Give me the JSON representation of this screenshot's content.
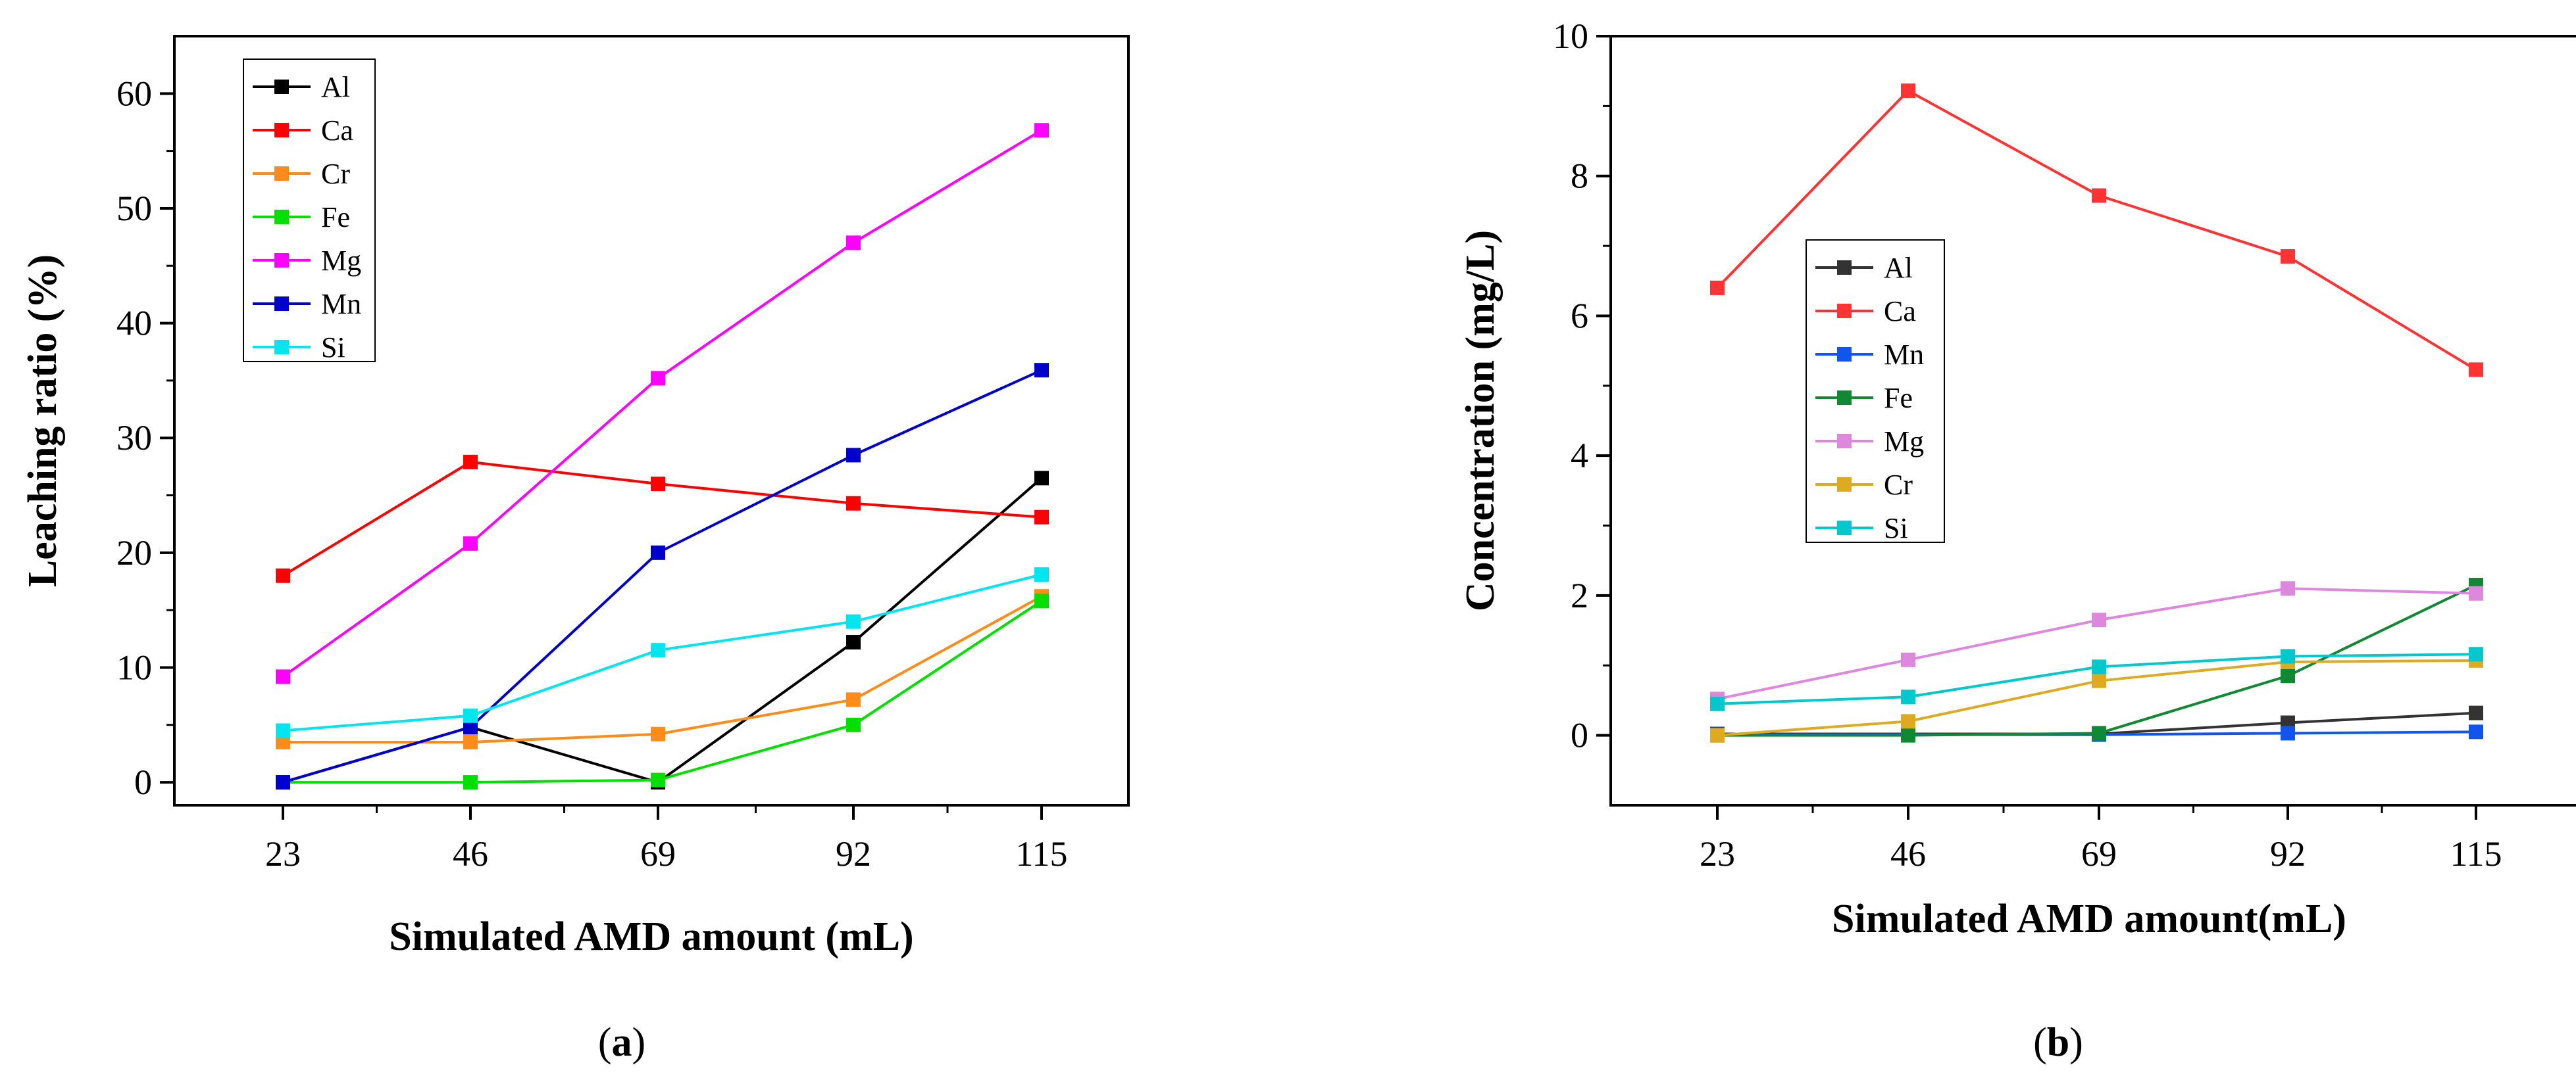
{
  "chart_data": [
    {
      "type": "line",
      "panel": "a",
      "xlabel": "Simulated AMD amount (mL)",
      "ylabel": "Leaching ratio (%)",
      "x": [
        23,
        46,
        69,
        92,
        115
      ],
      "xticks": [
        "23",
        "46",
        "69",
        "92",
        "115"
      ],
      "ylim": [
        -2,
        65
      ],
      "yticks": [
        0,
        10,
        20,
        30,
        40,
        50,
        60
      ],
      "legend_position": "top-left",
      "series": [
        {
          "name": "Al",
          "color": "#000000",
          "values": [
            0,
            4.8,
            0,
            12.2,
            26.5
          ]
        },
        {
          "name": "Ca",
          "color": "#ff0000",
          "values": [
            18,
            27.9,
            26,
            24.3,
            23.1
          ]
        },
        {
          "name": "Cr",
          "color": "#ff8c1a",
          "values": [
            3.5,
            3.5,
            4.2,
            7.2,
            16.2
          ]
        },
        {
          "name": "Fe",
          "color": "#00e000",
          "values": [
            0,
            0,
            0.2,
            5,
            15.8
          ]
        },
        {
          "name": "Mg",
          "color": "#ff00ff",
          "values": [
            9.2,
            20.8,
            35.2,
            47,
            56.8
          ]
        },
        {
          "name": "Mn",
          "color": "#0000cc",
          "values": [
            0,
            4.8,
            20,
            28.5,
            35.9
          ]
        },
        {
          "name": "Si",
          "color": "#00e5ee",
          "values": [
            4.5,
            5.8,
            11.5,
            14,
            18.1
          ]
        }
      ]
    },
    {
      "type": "line",
      "panel": "b",
      "xlabel": "Simulated AMD amount(mL)",
      "ylabel": "Concentration (mg/L)",
      "x": [
        23,
        46,
        69,
        92,
        115
      ],
      "xticks": [
        "23",
        "46",
        "69",
        "92",
        "115"
      ],
      "ylim": [
        -1,
        10
      ],
      "yticks": [
        0,
        2,
        4,
        6,
        8,
        10
      ],
      "legend_position": "center-left",
      "series": [
        {
          "name": "Al",
          "color": "#333333",
          "values": [
            0.02,
            0.02,
            0.02,
            0.18,
            0.32
          ]
        },
        {
          "name": "Ca",
          "color": "#ff3333",
          "values": [
            6.4,
            9.22,
            7.72,
            6.85,
            5.23
          ]
        },
        {
          "name": "Mn",
          "color": "#1155ee",
          "values": [
            0.01,
            0.01,
            0.01,
            0.03,
            0.05
          ]
        },
        {
          "name": "Fe",
          "color": "#118833",
          "values": [
            0,
            0,
            0.03,
            0.85,
            2.15
          ]
        },
        {
          "name": "Mg",
          "color": "#dd88dd",
          "values": [
            0.52,
            1.08,
            1.65,
            2.1,
            2.03
          ]
        },
        {
          "name": "Cr",
          "color": "#ddaa22",
          "values": [
            0,
            0.2,
            0.78,
            1.05,
            1.07
          ]
        },
        {
          "name": "Si",
          "color": "#00c8cc",
          "values": [
            0.45,
            0.55,
            0.98,
            1.13,
            1.16
          ]
        }
      ]
    }
  ],
  "panel_labels": {
    "a": {
      "open": "(",
      "letter": "a",
      "close": ")"
    },
    "b": {
      "open": "(",
      "letter": "b",
      "close": ")"
    }
  }
}
